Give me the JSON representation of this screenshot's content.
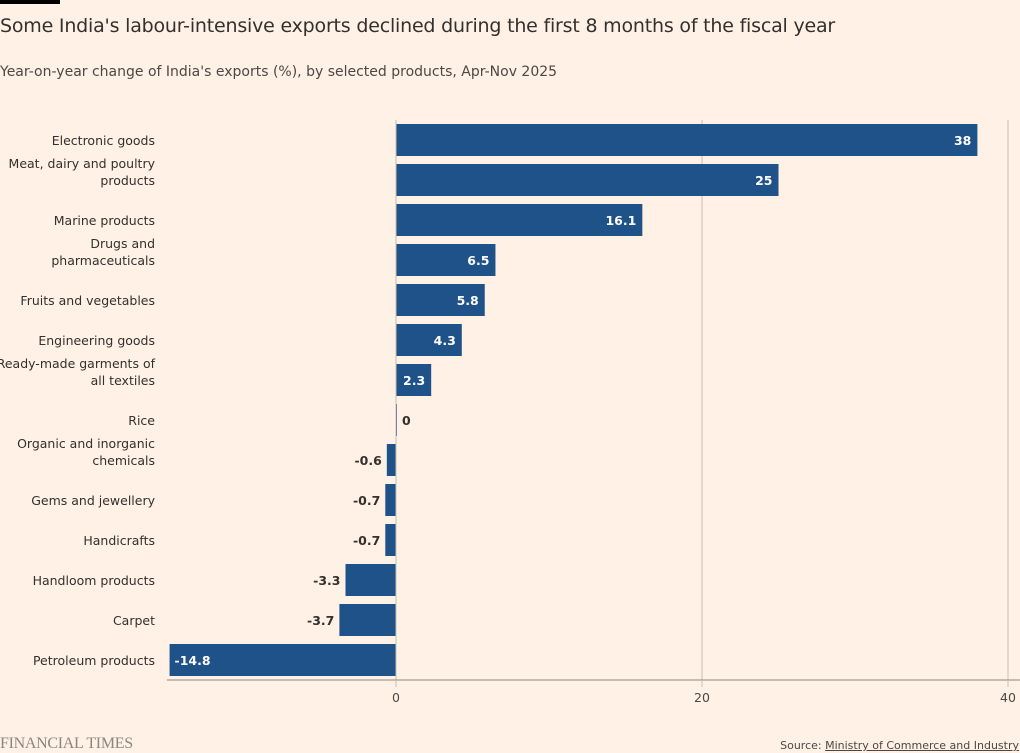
{
  "title": "Some India's labour-intensive exports declined during the first 8 months of the fiscal year",
  "subtitle": "Year-on-year change of India's exports (%), by selected products, Apr-Nov 2025",
  "source_label": "Source:",
  "source_link": "Ministry of Commerce and Industry",
  "logo": "FINANCIAL TIMES",
  "colors": {
    "bar": "#1f5289",
    "background": "#fff1e5",
    "grid": "#c9bfb6",
    "axis": "#8c8580"
  },
  "chart_data": {
    "type": "bar",
    "orientation": "horizontal",
    "title": "Some India's labour-intensive exports declined during the first 8 months of the fiscal year",
    "subtitle": "Year-on-year change of India's exports (%), by selected products, Apr-Nov 2025",
    "categories": [
      [
        "Electronic goods"
      ],
      [
        "Meat, dairy and poultry",
        "products"
      ],
      [
        "Marine products"
      ],
      [
        "Drugs and",
        "pharmaceuticals"
      ],
      [
        "Fruits and vegetables"
      ],
      [
        "Engineering goods"
      ],
      [
        "Ready-made garments of",
        "all textiles"
      ],
      [
        "Rice"
      ],
      [
        "Organic and inorganic",
        "chemicals"
      ],
      [
        "Gems and jewellery"
      ],
      [
        "Handicrafts"
      ],
      [
        "Handloom products"
      ],
      [
        "Carpet"
      ],
      [
        "Petroleum products"
      ]
    ],
    "values": [
      38,
      25,
      16.1,
      6.5,
      5.8,
      4.3,
      2.3,
      0,
      -0.6,
      -0.7,
      -0.7,
      -3.3,
      -3.7,
      -14.8
    ],
    "labels": [
      "38",
      "25",
      "16.1",
      "6.5",
      "5.8",
      "4.3",
      "2.3",
      "0",
      "-0.6",
      "-0.7",
      "-0.7",
      "-3.3",
      "-3.7",
      "-14.8"
    ],
    "xlim": [
      -15,
      40
    ],
    "xticks": [
      0,
      20,
      40
    ],
    "xtick_labels": [
      "0",
      "20",
      "40"
    ],
    "grid": true,
    "legend": "none"
  }
}
